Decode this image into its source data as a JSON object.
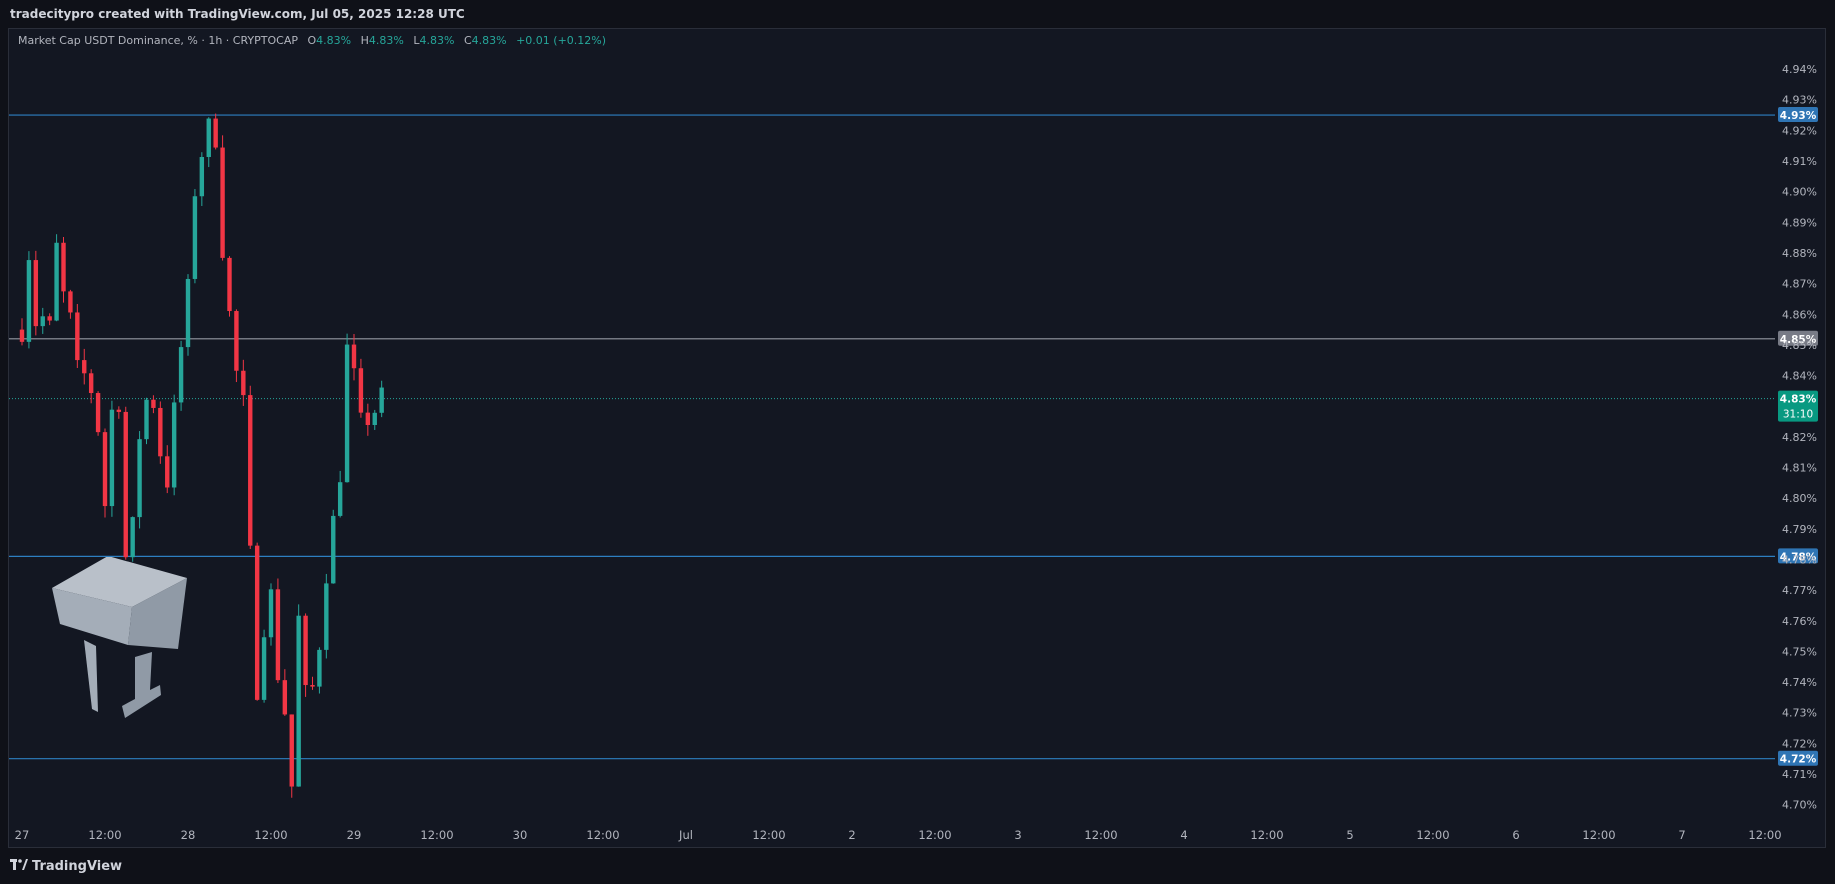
{
  "header": {
    "title": "tradecitypro created with TradingView.com, Jul 05, 2025 12:28 UTC"
  },
  "legend": {
    "symbol": "Market Cap USDT Dominance, % · 1h · CRYPTOCAP",
    "o_label": "O",
    "o_value": "4.83%",
    "h_label": "H",
    "h_value": "4.83%",
    "l_label": "L",
    "l_value": "4.83%",
    "c_label": "C",
    "c_value": "4.83%",
    "change": "+0.01 (+0.12%)"
  },
  "footer": {
    "brand": "TradingView"
  },
  "colors": {
    "up": "#26a69a",
    "down": "#f23645",
    "level": "#2962ff",
    "background": "#131722"
  },
  "chart_data": {
    "type": "candlestick",
    "title": "",
    "ylim": [
      4.695,
      4.945
    ],
    "y_ticks": [
      "4.70%",
      "4.71%",
      "4.72%",
      "4.73%",
      "4.74%",
      "4.75%",
      "4.76%",
      "4.77%",
      "4.78%",
      "4.79%",
      "4.80%",
      "4.81%",
      "4.82%",
      "4.83%",
      "4.84%",
      "4.85%",
      "4.86%",
      "4.87%",
      "4.88%",
      "4.89%",
      "4.90%",
      "4.91%",
      "4.92%",
      "4.93%",
      "4.94%"
    ],
    "x_ticks": [
      "27",
      "12:00",
      "28",
      "12:00",
      "29",
      "12:00",
      "30",
      "12:00",
      "Jul",
      "12:00",
      "2",
      "12:00",
      "3",
      "12:00",
      "4",
      "12:00",
      "5",
      "12:00",
      "6",
      "12:00",
      "7",
      "12:00"
    ],
    "levels": [
      {
        "value": 4.925,
        "label": "4.93%",
        "kind": "blue"
      },
      {
        "value": 4.852,
        "label": "4.85%",
        "kind": "gray"
      },
      {
        "value": 4.781,
        "label": "4.78%",
        "kind": "blue"
      },
      {
        "value": 4.715,
        "label": "4.72%",
        "kind": "blue"
      }
    ],
    "current": {
      "value": 4.8325,
      "label": "4.83%",
      "countdown": "31:10"
    },
    "path": [
      [
        4.855,
        0.0
      ],
      [
        4.885,
        0.05
      ],
      [
        4.852,
        0.09
      ],
      [
        4.86,
        0.13
      ],
      [
        4.855,
        0.17
      ],
      [
        4.89,
        0.2
      ],
      [
        4.86,
        0.23
      ],
      [
        4.872,
        0.27
      ],
      [
        4.84,
        0.32
      ],
      [
        4.845,
        0.36
      ],
      [
        4.832,
        0.4
      ],
      [
        4.838,
        0.43
      ],
      [
        4.822,
        0.46
      ],
      [
        4.808,
        0.48
      ],
      [
        4.798,
        0.5
      ],
      [
        4.828,
        0.54
      ],
      [
        4.838,
        0.58
      ],
      [
        4.8,
        0.6
      ],
      [
        4.786,
        0.615
      ],
      [
        4.778,
        0.63
      ],
      [
        4.785,
        0.65
      ],
      [
        4.795,
        0.68
      ],
      [
        4.822,
        0.71
      ],
      [
        4.832,
        0.75
      ],
      [
        4.858,
        0.78
      ],
      [
        4.812,
        0.8
      ],
      [
        4.82,
        0.83
      ],
      [
        4.79,
        0.85
      ],
      [
        4.815,
        0.89
      ],
      [
        4.835,
        0.93
      ],
      [
        4.855,
        0.97
      ],
      [
        4.868,
        1.0
      ],
      [
        4.9,
        1.04
      ],
      [
        4.912,
        1.08
      ],
      [
        4.92,
        1.12
      ],
      [
        4.925,
        1.15
      ],
      [
        4.912,
        1.18
      ],
      [
        4.88,
        1.21
      ],
      [
        4.86,
        1.25
      ],
      [
        4.835,
        1.28
      ],
      [
        4.85,
        1.31
      ],
      [
        4.825,
        1.34
      ],
      [
        4.8,
        1.36
      ],
      [
        4.775,
        1.38
      ],
      [
        4.742,
        1.4
      ],
      [
        4.735,
        1.43
      ],
      [
        4.76,
        1.46
      ],
      [
        4.775,
        1.49
      ],
      [
        4.755,
        1.52
      ],
      [
        4.738,
        1.55
      ],
      [
        4.733,
        1.58
      ],
      [
        4.71,
        1.61
      ],
      [
        4.702,
        1.64
      ],
      [
        4.765,
        1.66
      ],
      [
        4.745,
        1.69
      ],
      [
        4.73,
        1.72
      ],
      [
        4.738,
        1.75
      ],
      [
        4.743,
        1.78
      ],
      [
        4.768,
        1.81
      ],
      [
        4.778,
        1.84
      ],
      [
        4.795,
        1.87
      ],
      [
        4.785,
        1.89
      ],
      [
        4.8,
        1.91
      ],
      [
        4.825,
        1.93
      ],
      [
        4.85,
        1.96
      ],
      [
        4.838,
        1.99
      ],
      [
        4.842,
        2.02
      ],
      [
        4.824,
        2.04
      ],
      [
        4.829,
        2.07
      ],
      [
        4.822,
        2.1
      ],
      [
        4.83,
        2.13
      ],
      [
        4.833,
        2.16
      ]
    ]
  }
}
